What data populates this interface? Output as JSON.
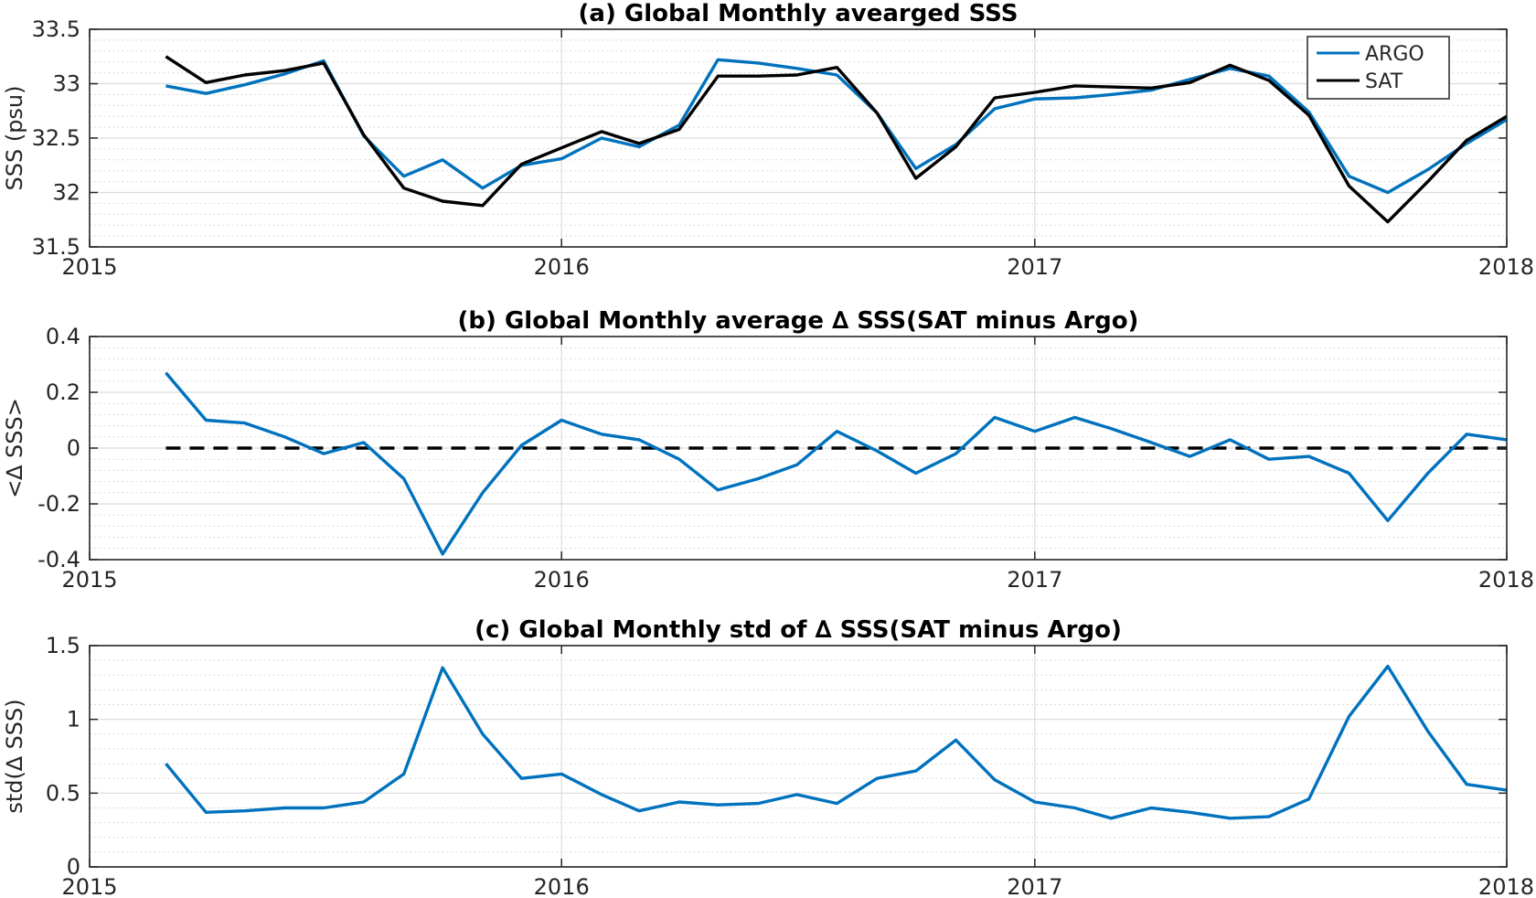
{
  "chart_data": [
    {
      "type": "line",
      "title": "(a) Global Monthly avearged SSS",
      "ylabel": "SSS (psu)",
      "xlabel": "",
      "xlim": [
        "2015-01-01",
        "2018-01-01"
      ],
      "ylim": [
        31.5,
        33.5
      ],
      "x_ticks": [
        "2015",
        "2016",
        "2017",
        "2018"
      ],
      "y_ticks": [
        "31.5",
        "32",
        "32.5",
        "33",
        "33.5"
      ],
      "grid": true,
      "minor_grid": true,
      "legend": "top-right",
      "x": [
        "2015-03-01",
        "2015-04-01",
        "2015-05-01",
        "2015-06-01",
        "2015-07-01",
        "2015-08-01",
        "2015-09-01",
        "2015-10-01",
        "2015-11-01",
        "2015-12-01",
        "2016-01-01",
        "2016-02-01",
        "2016-03-01",
        "2016-04-01",
        "2016-05-01",
        "2016-06-01",
        "2016-07-01",
        "2016-08-01",
        "2016-09-01",
        "2016-10-01",
        "2016-11-01",
        "2016-12-01",
        "2017-01-01",
        "2017-02-01",
        "2017-03-01",
        "2017-04-01",
        "2017-05-01",
        "2017-06-01",
        "2017-07-01",
        "2017-08-01",
        "2017-09-01",
        "2017-10-01",
        "2017-11-01",
        "2017-12-01",
        "2018-01-01"
      ],
      "series": [
        {
          "name": "ARGO",
          "color": "#0072BD",
          "values": [
            32.98,
            32.91,
            32.99,
            33.09,
            33.21,
            32.52,
            32.15,
            32.3,
            32.04,
            32.25,
            32.31,
            32.5,
            32.42,
            32.62,
            33.22,
            33.19,
            33.14,
            33.08,
            32.73,
            32.22,
            32.44,
            32.77,
            32.86,
            32.87,
            32.9,
            32.94,
            33.04,
            33.14,
            33.07,
            32.74,
            32.15,
            32.0,
            32.21,
            32.45,
            32.67
          ]
        },
        {
          "name": "SAT",
          "color": "#000000",
          "values": [
            33.25,
            33.01,
            33.08,
            33.12,
            33.19,
            32.53,
            32.04,
            31.92,
            31.88,
            32.26,
            32.41,
            32.56,
            32.45,
            32.58,
            33.07,
            33.07,
            33.08,
            33.15,
            32.73,
            32.13,
            32.42,
            32.87,
            32.92,
            32.98,
            32.97,
            32.96,
            33.01,
            33.17,
            33.03,
            32.71,
            32.06,
            31.73,
            32.1,
            32.48,
            32.7
          ]
        }
      ]
    },
    {
      "type": "line",
      "title": "(b) Global Monthly average ∆ SSS(SAT minus Argo)",
      "ylabel": "<∆ SSS>",
      "xlabel": "",
      "xlim": [
        "2015-01-01",
        "2018-01-01"
      ],
      "ylim": [
        -0.4,
        0.4
      ],
      "x_ticks": [
        "2015",
        "2016",
        "2017",
        "2018"
      ],
      "y_ticks": [
        "-0.4",
        "-0.2",
        "0",
        "0.2",
        "0.4"
      ],
      "grid": true,
      "minor_grid": true,
      "reference_line": {
        "y": 0,
        "style": "dashed",
        "color": "#000000",
        "from": "2015-03-01"
      },
      "x": [
        "2015-03-01",
        "2015-04-01",
        "2015-05-01",
        "2015-06-01",
        "2015-07-01",
        "2015-08-01",
        "2015-09-01",
        "2015-10-01",
        "2015-11-01",
        "2015-12-01",
        "2016-01-01",
        "2016-02-01",
        "2016-03-01",
        "2016-04-01",
        "2016-05-01",
        "2016-06-01",
        "2016-07-01",
        "2016-08-01",
        "2016-09-01",
        "2016-10-01",
        "2016-11-01",
        "2016-12-01",
        "2017-01-01",
        "2017-02-01",
        "2017-03-01",
        "2017-04-01",
        "2017-05-01",
        "2017-06-01",
        "2017-07-01",
        "2017-08-01",
        "2017-09-01",
        "2017-10-01",
        "2017-11-01",
        "2017-12-01",
        "2018-01-01"
      ],
      "series": [
        {
          "color": "#0072BD",
          "values": [
            0.27,
            0.1,
            0.09,
            0.04,
            -0.02,
            0.02,
            -0.11,
            -0.38,
            -0.16,
            0.01,
            0.1,
            0.05,
            0.03,
            -0.04,
            -0.15,
            -0.11,
            -0.06,
            0.06,
            -0.01,
            -0.09,
            -0.02,
            0.11,
            0.06,
            0.11,
            0.07,
            0.02,
            -0.03,
            0.03,
            -0.04,
            -0.03,
            -0.09,
            -0.26,
            -0.09,
            0.05,
            0.03
          ]
        }
      ]
    },
    {
      "type": "line",
      "title": "(c) Global Monthly std of ∆ SSS(SAT minus Argo)",
      "ylabel": "std(∆ SSS)",
      "xlabel": "",
      "xlim": [
        "2015-01-01",
        "2018-01-01"
      ],
      "ylim": [
        0,
        1.5
      ],
      "x_ticks": [
        "2015",
        "2016",
        "2017",
        "2018"
      ],
      "y_ticks": [
        "0",
        "0.5",
        "1",
        "1.5"
      ],
      "grid": true,
      "minor_grid": true,
      "x": [
        "2015-03-01",
        "2015-04-01",
        "2015-05-01",
        "2015-06-01",
        "2015-07-01",
        "2015-08-01",
        "2015-09-01",
        "2015-10-01",
        "2015-11-01",
        "2015-12-01",
        "2016-01-01",
        "2016-02-01",
        "2016-03-01",
        "2016-04-01",
        "2016-05-01",
        "2016-06-01",
        "2016-07-01",
        "2016-08-01",
        "2016-09-01",
        "2016-10-01",
        "2016-11-01",
        "2016-12-01",
        "2017-01-01",
        "2017-02-01",
        "2017-03-01",
        "2017-04-01",
        "2017-05-01",
        "2017-06-01",
        "2017-07-01",
        "2017-08-01",
        "2017-09-01",
        "2017-10-01",
        "2017-11-01",
        "2017-12-01",
        "2018-01-01"
      ],
      "series": [
        {
          "color": "#0072BD",
          "values": [
            0.7,
            0.37,
            0.38,
            0.4,
            0.4,
            0.44,
            0.63,
            1.35,
            0.9,
            0.6,
            0.63,
            0.49,
            0.38,
            0.44,
            0.42,
            0.43,
            0.49,
            0.43,
            0.6,
            0.65,
            0.86,
            0.59,
            0.44,
            0.4,
            0.33,
            0.4,
            0.37,
            0.33,
            0.34,
            0.46,
            1.02,
            1.36,
            0.92,
            0.56,
            0.52
          ]
        }
      ]
    }
  ]
}
